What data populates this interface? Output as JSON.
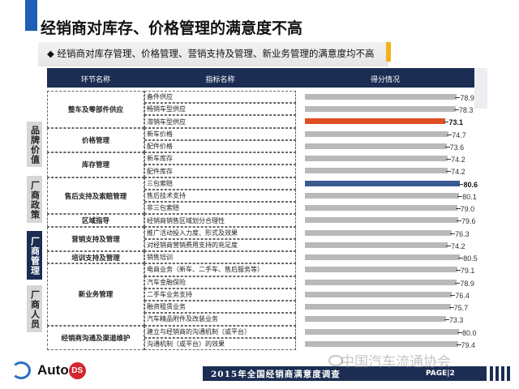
{
  "title": "经销商对库存、价格管理的满意度不高",
  "subtitle": "◆ 经销商对库存管理、价格管理、营销支持及管理、新业务管理的满意度均不高",
  "header": {
    "col1": "环节名称",
    "col2": "指标名称",
    "col3": "得分情况"
  },
  "side_labels": [
    {
      "text": "品牌价值",
      "style": "gray"
    },
    {
      "text": "厂商政策",
      "style": "gray"
    },
    {
      "text": "厂商管理",
      "style": "navy"
    },
    {
      "text": "厂商人员",
      "style": "gray"
    }
  ],
  "groups": [
    {
      "name": "整车及零部件供应",
      "rows": 3
    },
    {
      "name": "价格管理",
      "rows": 2
    },
    {
      "name": "库存管理",
      "rows": 2
    },
    {
      "name": "售后支持及索赔管理",
      "rows": 3
    },
    {
      "name": "区域指导",
      "rows": 1
    },
    {
      "name": "营销支持及管理",
      "rows": 2
    },
    {
      "name": "培训支持及管理",
      "rows": 1
    },
    {
      "name": "新业务管理",
      "rows": 5
    },
    {
      "name": "经销商沟通及渠道维护",
      "rows": 2
    }
  ],
  "chart_data": {
    "type": "bar",
    "orientation": "horizontal",
    "categories": [
      "备件供应",
      "畅销车型供应",
      "滞销车型供应",
      "新车价格",
      "配件价格",
      "新车库存",
      "配件库存",
      "三包索赔",
      "售后技术支持",
      "非三包索赔",
      "经销商销售区域划分合理性",
      "推广活动投入力度、形式及效果",
      "对经销商营销费用支持的充足度",
      "销售培训",
      "电商业务（新车、二手车、售后服务等）",
      "汽车金融保险",
      "二手车业务支持",
      "融资租赁业务",
      "汽车精品附件及改装业务",
      "建立与经销商的沟通机制（或平台）",
      "沟通机制（或平台）的效果"
    ],
    "values": [
      78.9,
      78.3,
      73.1,
      74.7,
      73.6,
      74.2,
      74.2,
      80.6,
      80.1,
      79.0,
      79.6,
      76.3,
      74.2,
      80.5,
      79.1,
      78.9,
      76.4,
      75.7,
      73.3,
      80.0,
      79.4
    ],
    "highlight": {
      "min_index": 2,
      "max_index": 7
    },
    "colors": {
      "default": "#b9b9b9",
      "min": "#e04e24",
      "max": "#3a5a92"
    },
    "xlim": [
      0,
      85
    ]
  },
  "footer": {
    "banner": "2015年全国经销商满意度调查",
    "page": "PAGE|2",
    "logo_text": "Auto",
    "logo_badge": "DS",
    "watermark": "中国汽车流通协会"
  },
  "colors": {
    "navy": "#1b2d52",
    "accent_blue": "#1f5fb5",
    "accent_orange": "#f3b21b"
  }
}
